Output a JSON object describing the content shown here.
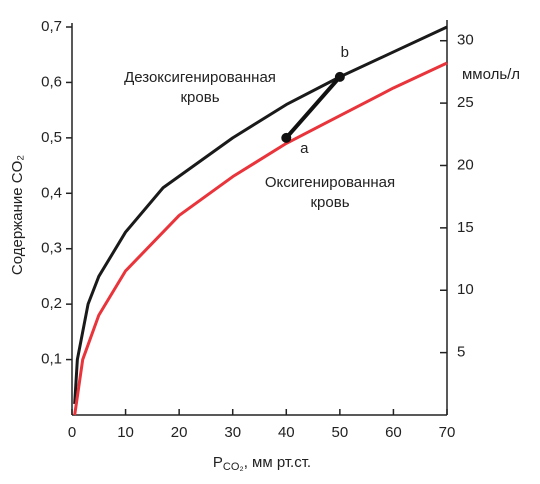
{
  "chart_data": {
    "type": "line",
    "y_label": "Содержание CO₂",
    "x_label": {
      "main": "P",
      "sub": "CO₂",
      "rest": ", мм рт.ст."
    },
    "y2_label": "ммоль/л",
    "xlim": [
      0,
      70
    ],
    "xticks": [
      0,
      10,
      20,
      30,
      40,
      50,
      60,
      70
    ],
    "ylim": [
      0,
      0.7
    ],
    "yticks": [
      {
        "value": 0.1,
        "label": "0,1"
      },
      {
        "value": 0.2,
        "label": "0,2"
      },
      {
        "value": 0.3,
        "label": "0,3"
      },
      {
        "value": 0.4,
        "label": "0,4"
      },
      {
        "value": 0.5,
        "label": "0,5"
      },
      {
        "value": 0.6,
        "label": "0,6"
      },
      {
        "value": 0.7,
        "label": "0,7"
      }
    ],
    "y2lim": [
      0,
      31.1
    ],
    "y2ticks": [
      5,
      10,
      15,
      20,
      25,
      30
    ],
    "series": [
      {
        "name": "Дезоксигенированная кровь",
        "name_lines": [
          "Дезоксигенированная",
          "кровь"
        ],
        "color": "#1a1a1a",
        "x": [
          0.5,
          1,
          3,
          5,
          10,
          17,
          30,
          40,
          50,
          60,
          70
        ],
        "values": [
          0.02,
          0.1,
          0.2,
          0.25,
          0.33,
          0.41,
          0.5,
          0.56,
          0.61,
          0.655,
          0.7
        ]
      },
      {
        "name": "Оксигенированная кровь",
        "name_lines": [
          "Оксигенированная",
          "кровь"
        ],
        "color": "#e8343a",
        "x": [
          0.5,
          2,
          5,
          10,
          20,
          30,
          40,
          50,
          60,
          70
        ],
        "values": [
          0,
          0.1,
          0.18,
          0.26,
          0.36,
          0.43,
          0.49,
          0.54,
          0.59,
          0.635
        ]
      }
    ],
    "points": [
      {
        "label": "a",
        "x": 40,
        "y": 0.5
      },
      {
        "label": "b",
        "x": 50,
        "y": 0.61
      }
    ]
  }
}
